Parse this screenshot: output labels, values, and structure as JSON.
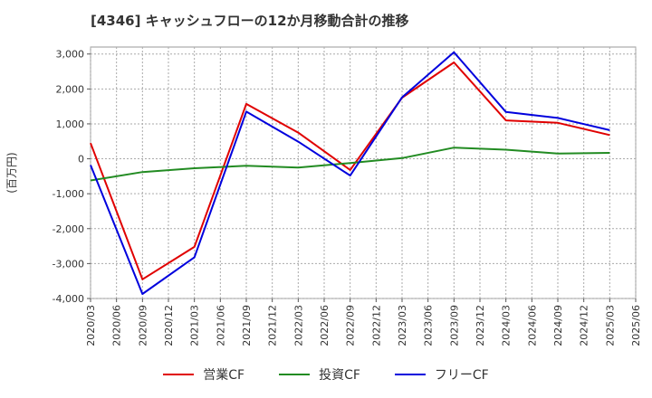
{
  "chart_data": {
    "type": "line",
    "title": "[4346]  キャッシュフローの12か月移動合計の推移",
    "ylabel": "(百万円)",
    "xlabel": "",
    "ylim": [
      -4000,
      3200
    ],
    "yticks": [
      3000,
      2000,
      1000,
      0,
      -1000,
      -2000,
      -3000,
      -4000
    ],
    "ytick_labels": [
      "3,000",
      "2,000",
      "1,000",
      "0",
      "-1,000",
      "-2,000",
      "-3,000",
      "-4,000"
    ],
    "x": [
      "2020/03",
      "2020/06",
      "2020/09",
      "2020/12",
      "2021/03",
      "2021/06",
      "2021/09",
      "2021/12",
      "2022/03",
      "2022/06",
      "2022/09",
      "2022/12",
      "2023/03",
      "2023/06",
      "2023/09",
      "2023/12",
      "2024/03",
      "2024/06",
      "2024/09",
      "2024/12",
      "2025/03",
      "2025/06"
    ],
    "grid": true,
    "legend_position": "bottom",
    "series": [
      {
        "name": "営業CF",
        "color": "#e00000",
        "points": [
          [
            "2020/03",
            450
          ],
          [
            "2020/09",
            -3450
          ],
          [
            "2021/03",
            -2520
          ],
          [
            "2021/09",
            1570
          ],
          [
            "2022/03",
            750
          ],
          [
            "2022/09",
            -320
          ],
          [
            "2023/03",
            1750
          ],
          [
            "2023/09",
            2760
          ],
          [
            "2024/03",
            1100
          ],
          [
            "2024/09",
            1030
          ],
          [
            "2025/03",
            680
          ]
        ]
      },
      {
        "name": "投資CF",
        "color": "#228b22",
        "points": [
          [
            "2020/03",
            -620
          ],
          [
            "2020/09",
            -380
          ],
          [
            "2021/03",
            -270
          ],
          [
            "2021/09",
            -200
          ],
          [
            "2022/03",
            -250
          ],
          [
            "2022/09",
            -120
          ],
          [
            "2023/03",
            20
          ],
          [
            "2023/09",
            320
          ],
          [
            "2024/03",
            260
          ],
          [
            "2024/09",
            150
          ],
          [
            "2025/03",
            170
          ]
        ]
      },
      {
        "name": "フリーCF",
        "color": "#0000dd",
        "points": [
          [
            "2020/03",
            -180
          ],
          [
            "2020/09",
            -3870
          ],
          [
            "2021/03",
            -2820
          ],
          [
            "2021/09",
            1350
          ],
          [
            "2022/03",
            490
          ],
          [
            "2022/09",
            -480
          ],
          [
            "2023/03",
            1760
          ],
          [
            "2023/09",
            3050
          ],
          [
            "2024/03",
            1340
          ],
          [
            "2024/09",
            1170
          ],
          [
            "2025/03",
            820
          ]
        ]
      }
    ]
  }
}
